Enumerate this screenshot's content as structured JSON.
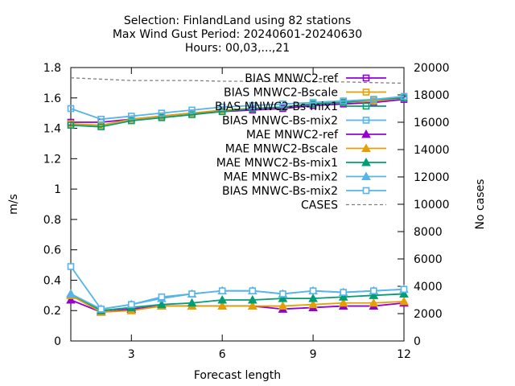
{
  "chart_data": {
    "type": "line",
    "title": [
      "Selection: FinlandLand using    82 stations",
      "Max Wind Gust   Period: 20240601-20240630",
      "Hours: 00,03,...,21"
    ],
    "xlabel": "Forecast length",
    "ylabel": "m/s",
    "y2label": "No cases",
    "xlim": [
      1,
      12
    ],
    "ylim": [
      0,
      1.8
    ],
    "y2lim": [
      0,
      20000
    ],
    "xticks": [
      "3",
      "6",
      "9",
      "12"
    ],
    "yticks": [
      "0",
      "0.2",
      "0.4",
      "0.6",
      "0.8",
      "1",
      "1.2",
      "1.4",
      "1.6",
      "1.8"
    ],
    "y2ticks": [
      "0",
      "2000",
      "4000",
      "6000",
      "8000",
      "10000",
      "12000",
      "14000",
      "16000",
      "18000",
      "20000"
    ],
    "x": [
      1,
      2,
      3,
      4,
      5,
      6,
      7,
      8,
      9,
      10,
      11,
      12
    ],
    "legend_position": "top-right",
    "grid": false,
    "series": [
      {
        "name": "BIAS MNWC2-ref",
        "axis": "y1",
        "color": "#9400d3",
        "marker": "square",
        "values": [
          1.44,
          1.44,
          1.46,
          1.48,
          1.5,
          1.51,
          1.52,
          1.53,
          1.55,
          1.56,
          1.57,
          1.59
        ]
      },
      {
        "name": "BIAS MNWC2-Bscale",
        "axis": "y1",
        "color": "#e69f00",
        "marker": "square",
        "values": [
          1.43,
          1.42,
          1.46,
          1.48,
          1.5,
          1.52,
          1.53,
          1.54,
          1.56,
          1.57,
          1.58,
          1.6
        ]
      },
      {
        "name": "BIAS MNWC2-Bs-mix1",
        "axis": "y1",
        "color": "#009e73",
        "marker": "square",
        "values": [
          1.42,
          1.41,
          1.45,
          1.47,
          1.49,
          1.51,
          1.53,
          1.54,
          1.56,
          1.57,
          1.59,
          1.6
        ]
      },
      {
        "name": "BIAS MNWC-Bs-mix2",
        "axis": "y1",
        "color": "#56b4e9",
        "marker": "square",
        "values": [
          1.53,
          1.46,
          1.48,
          1.5,
          1.52,
          1.54,
          1.55,
          1.56,
          1.57,
          1.58,
          1.59,
          1.61
        ]
      },
      {
        "name": "MAE MNWC2-ref",
        "axis": "y1",
        "color": "#9400d3",
        "marker": "triangle",
        "values": [
          0.27,
          0.19,
          0.21,
          0.23,
          0.23,
          0.23,
          0.23,
          0.21,
          0.22,
          0.23,
          0.23,
          0.25
        ]
      },
      {
        "name": "MAE MNWC2-Bscale",
        "axis": "y1",
        "color": "#e69f00",
        "marker": "triangle",
        "values": [
          0.3,
          0.19,
          0.2,
          0.23,
          0.23,
          0.23,
          0.23,
          0.23,
          0.24,
          0.25,
          0.25,
          0.26
        ]
      },
      {
        "name": "MAE MNWC2-Bs-mix1",
        "axis": "y1",
        "color": "#009e73",
        "marker": "triangle",
        "values": [
          0.31,
          0.2,
          0.22,
          0.24,
          0.25,
          0.27,
          0.27,
          0.28,
          0.28,
          0.29,
          0.3,
          0.31
        ]
      },
      {
        "name": "MAE MNWC-Bs-mix2",
        "axis": "y1",
        "color": "#56b4e9",
        "marker": "triangle",
        "values": [
          0.31,
          0.21,
          0.24,
          0.28,
          0.31,
          0.33,
          0.33,
          0.31,
          0.33,
          0.32,
          0.33,
          0.34
        ]
      },
      {
        "name": "BIAS MNWC-Bs-mix2",
        "axis": "y1",
        "color": "#56b4e9",
        "marker": "open-square",
        "values": [
          0.49,
          0.21,
          0.24,
          0.29,
          0.31,
          0.33,
          0.33,
          0.31,
          0.33,
          0.32,
          0.33,
          0.34
        ]
      },
      {
        "name": "CASES",
        "axis": "y2",
        "color": "#808080",
        "marker": "none",
        "dashed": true,
        "values": [
          19250,
          19150,
          19050,
          19050,
          19050,
          19000,
          19000,
          19000,
          18950,
          18950,
          18900,
          18850
        ]
      }
    ]
  }
}
